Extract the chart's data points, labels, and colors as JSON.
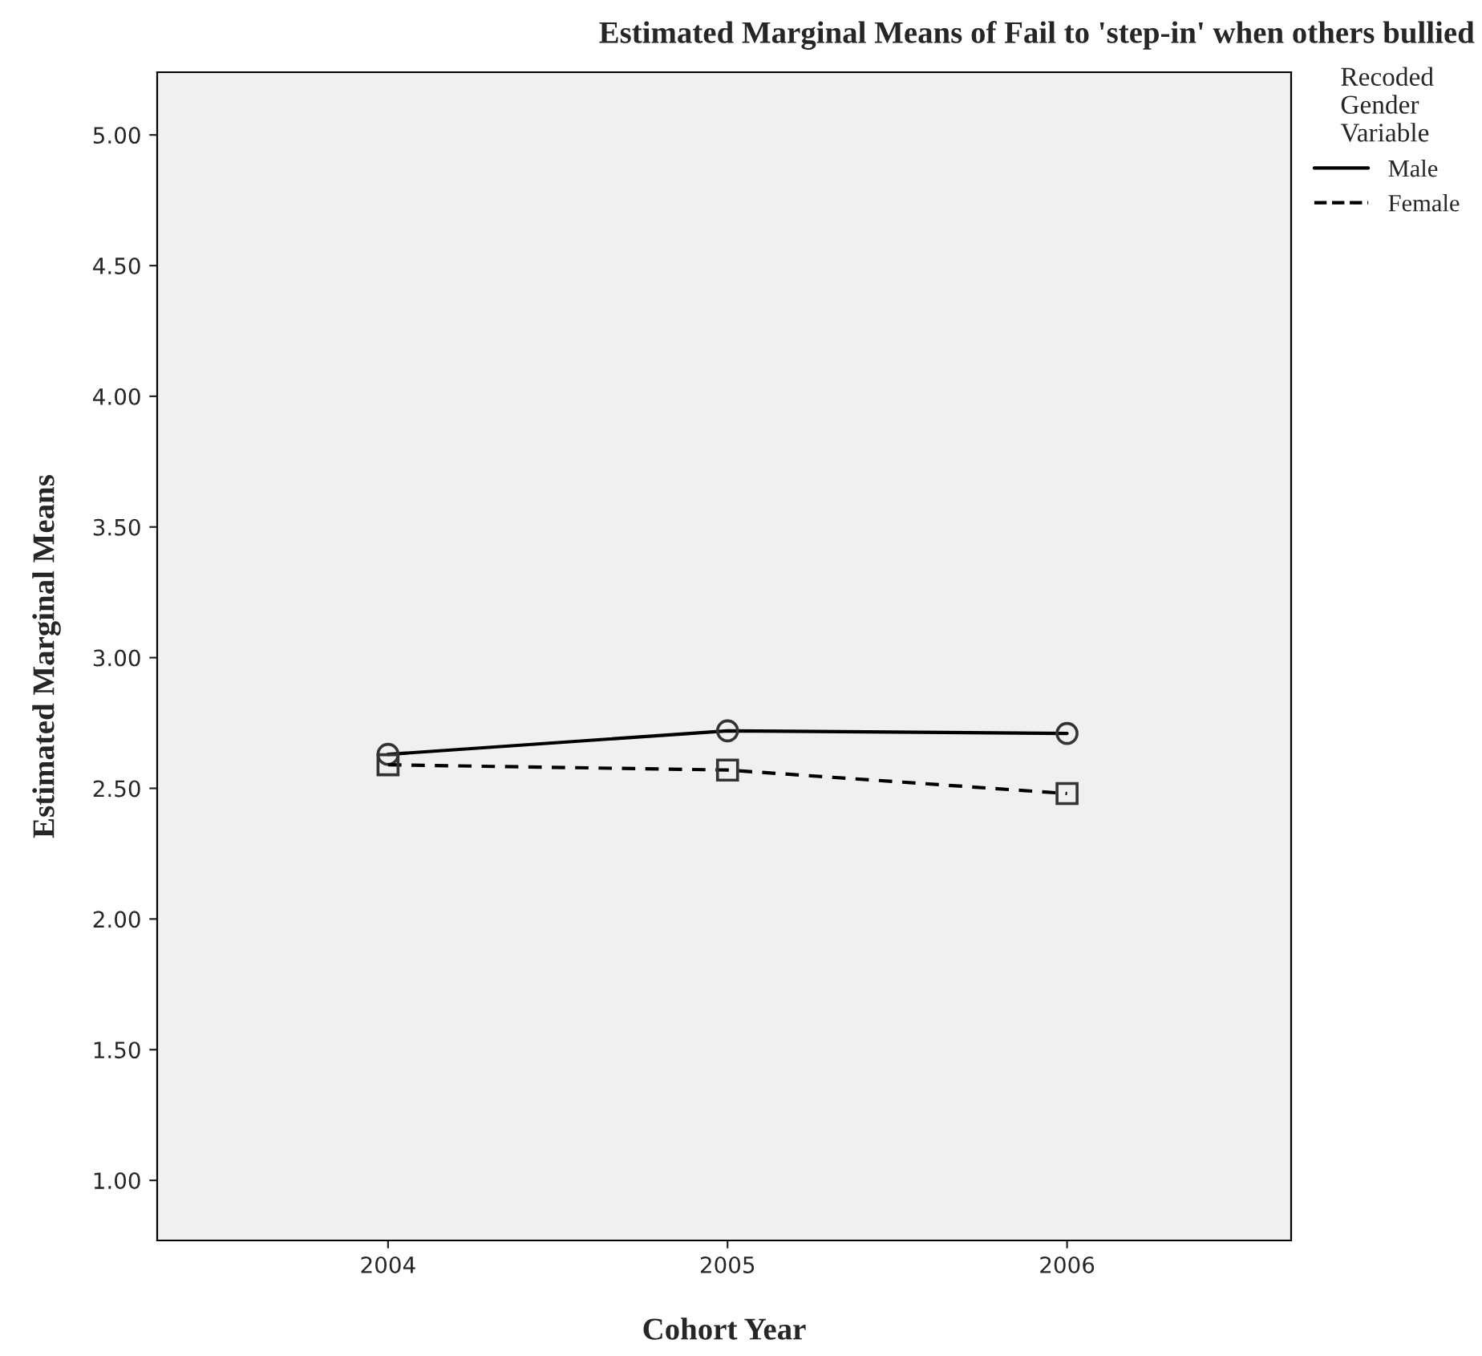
{
  "chart_data": {
    "type": "line",
    "title": "Estimated Marginal Means of Fail to 'step-in' when others bullied",
    "xlabel": "Cohort Year",
    "ylabel": "Estimated Marginal Means",
    "legend_title": "Recoded\nGender\nVariable",
    "categories": [
      "2004",
      "2005",
      "2006"
    ],
    "series": [
      {
        "name": "Male",
        "color": "#000000",
        "values": [
          2.63,
          2.72,
          2.71
        ],
        "marker": "circle",
        "line_style": "solid"
      },
      {
        "name": "Female",
        "color": "#000000",
        "values": [
          2.59,
          2.57,
          2.48
        ],
        "marker": "square",
        "line_style": "dashed"
      }
    ],
    "ylim": [
      0.77,
      5.24
    ],
    "yticks": [
      {
        "value": 1,
        "label": "1.00"
      },
      {
        "value": 1.5,
        "label": "1.50"
      },
      {
        "value": 2,
        "label": "2.00"
      },
      {
        "value": 2.5,
        "label": "2.50"
      },
      {
        "value": 3,
        "label": "3.00"
      },
      {
        "value": 3.5,
        "label": "3.50"
      },
      {
        "value": 4,
        "label": "4.00"
      },
      {
        "value": 4.5,
        "label": "4.50"
      },
      {
        "value": 5,
        "label": "5.00"
      }
    ],
    "grid": false,
    "legend": "top right"
  }
}
